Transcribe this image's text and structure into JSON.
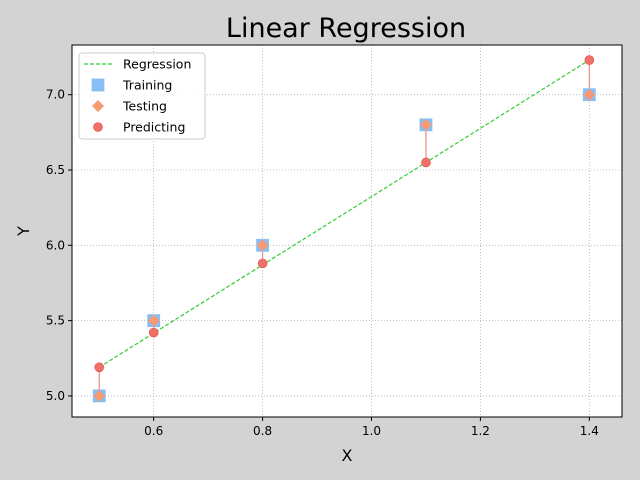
{
  "chart_data": {
    "type": "scatter",
    "title": "Linear Regression",
    "xlabel": "X",
    "ylabel": "Y",
    "xlim": [
      0.45,
      1.46
    ],
    "ylim": [
      4.86,
      7.33
    ],
    "xticks": [
      0.6,
      0.8,
      1.0,
      1.2,
      1.4
    ],
    "yticks": [
      5.0,
      5.5,
      6.0,
      6.5,
      7.0
    ],
    "grid": true,
    "legend_placement": "top-left",
    "series": [
      {
        "name": "Regression",
        "kind": "line",
        "style": "dashed",
        "color": "#32cd32",
        "x": [
          0.5,
          1.4
        ],
        "y": [
          5.19,
          7.23
        ]
      },
      {
        "name": "Training",
        "kind": "marker",
        "marker": "square",
        "color": "#87bff5",
        "x": [
          0.5,
          0.6,
          0.8,
          1.1,
          1.4
        ],
        "y": [
          5.0,
          5.5,
          6.0,
          6.8,
          7.0
        ]
      },
      {
        "name": "Testing",
        "kind": "marker",
        "marker": "diamond",
        "color": "#f59a73",
        "x": [
          0.5,
          0.6,
          0.8,
          1.1,
          1.4
        ],
        "y": [
          5.0,
          5.5,
          6.0,
          6.8,
          7.0
        ]
      },
      {
        "name": "Predicting",
        "kind": "marker",
        "marker": "circle",
        "color": "#f07068",
        "x": [
          0.5,
          0.6,
          0.8,
          1.1,
          1.4
        ],
        "y": [
          5.19,
          5.42,
          5.88,
          6.55,
          7.23
        ]
      }
    ],
    "residual_color": "#f08a80"
  }
}
